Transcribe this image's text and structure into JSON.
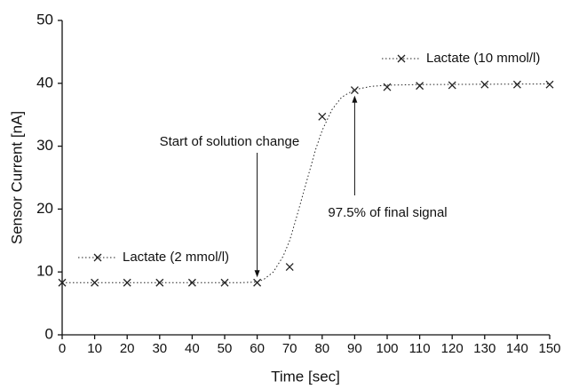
{
  "chart_data": {
    "type": "scatter",
    "x_label": "Time [sec]",
    "y_label": "Sensor Current [nA]",
    "xlim": [
      0,
      150
    ],
    "ylim": [
      0,
      50
    ],
    "xticks": [
      0,
      10,
      20,
      30,
      40,
      50,
      60,
      70,
      80,
      90,
      100,
      110,
      120,
      130,
      140,
      150
    ],
    "yticks": [
      0,
      10,
      20,
      30,
      40,
      50
    ],
    "grid": false,
    "color": "#222222",
    "series": [
      {
        "name": "Lactate (2 mmol/l)",
        "x": [
          0,
          10,
          20,
          30,
          40,
          50,
          60
        ],
        "values": [
          8.3,
          8.3,
          8.3,
          8.3,
          8.3,
          8.3,
          8.3
        ]
      },
      {
        "name": "Lactate (10 mmol/l)",
        "x": [
          70,
          80,
          90,
          100,
          110,
          120,
          130,
          140,
          150
        ],
        "values": [
          10.8,
          34.7,
          38.9,
          39.4,
          39.6,
          39.7,
          39.8,
          39.8,
          39.8
        ]
      }
    ],
    "fit": {
      "x": [
        0,
        55,
        60,
        62,
        65,
        68,
        70,
        72,
        75,
        78,
        80,
        83,
        86,
        90,
        95,
        100,
        110,
        150
      ],
      "values": [
        8.3,
        8.3,
        8.4,
        8.8,
        10,
        12.5,
        15,
        18.5,
        24,
        29.5,
        32.5,
        35.8,
        37.8,
        39,
        39.5,
        39.7,
        39.8,
        39.9
      ]
    },
    "annotations": [
      {
        "text": "Start of solution change",
        "series": 0,
        "point": 6
      },
      {
        "text": "97.5% of final signal",
        "series": 1,
        "point": 2
      }
    ]
  }
}
